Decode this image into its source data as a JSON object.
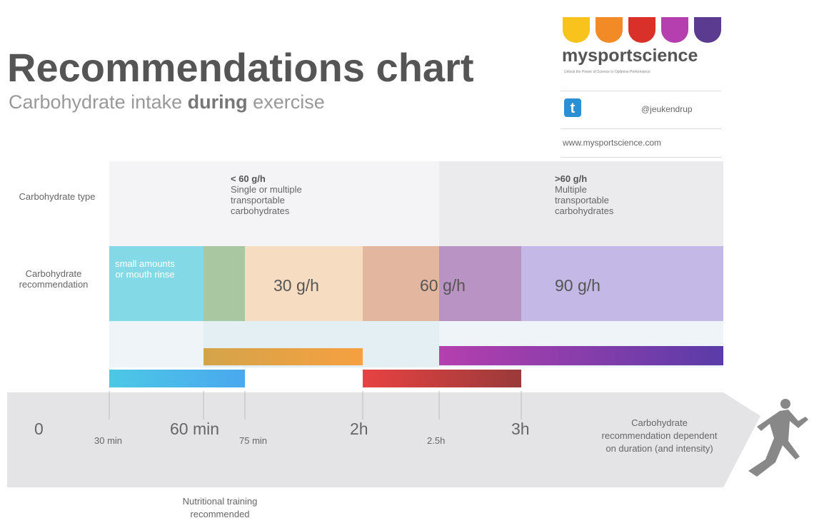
{
  "header": {
    "title": "Recommendations chart",
    "subtitle_start": "Carbohydrate intake",
    "subtitle_bold": "during",
    "subtitle_end": "exercise"
  },
  "logo": {
    "name": "mysportscience",
    "tagline": "Unlock the Power of Science to Optimise Performance",
    "twitter": "@jeukendrup",
    "url": "www.mysportscience.com"
  },
  "rows": {
    "type_label": "Carbohydrate type",
    "recommendation_label": "Carbohydrate recommendation"
  },
  "types": [
    {
      "amount": "< 60 g/h",
      "description": "Single or multiple transportable carbohydrates"
    },
    {
      "amount": ">60 g/h",
      "description": "Multiple transportable carbohydrates"
    }
  ],
  "recommendations": [
    "small amounts or mouth rinse",
    "30 g/h",
    "60 g/h",
    "90 g/h"
  ],
  "timeline": {
    "major": [
      "0",
      "60 min",
      "2h",
      "3h"
    ],
    "minor": [
      "30 min",
      "75 min",
      "2.5h"
    ],
    "note": "Carbohydrate recommendation dependent on duration (and intensity)"
  },
  "footnote": "Nutritional training recommended"
}
